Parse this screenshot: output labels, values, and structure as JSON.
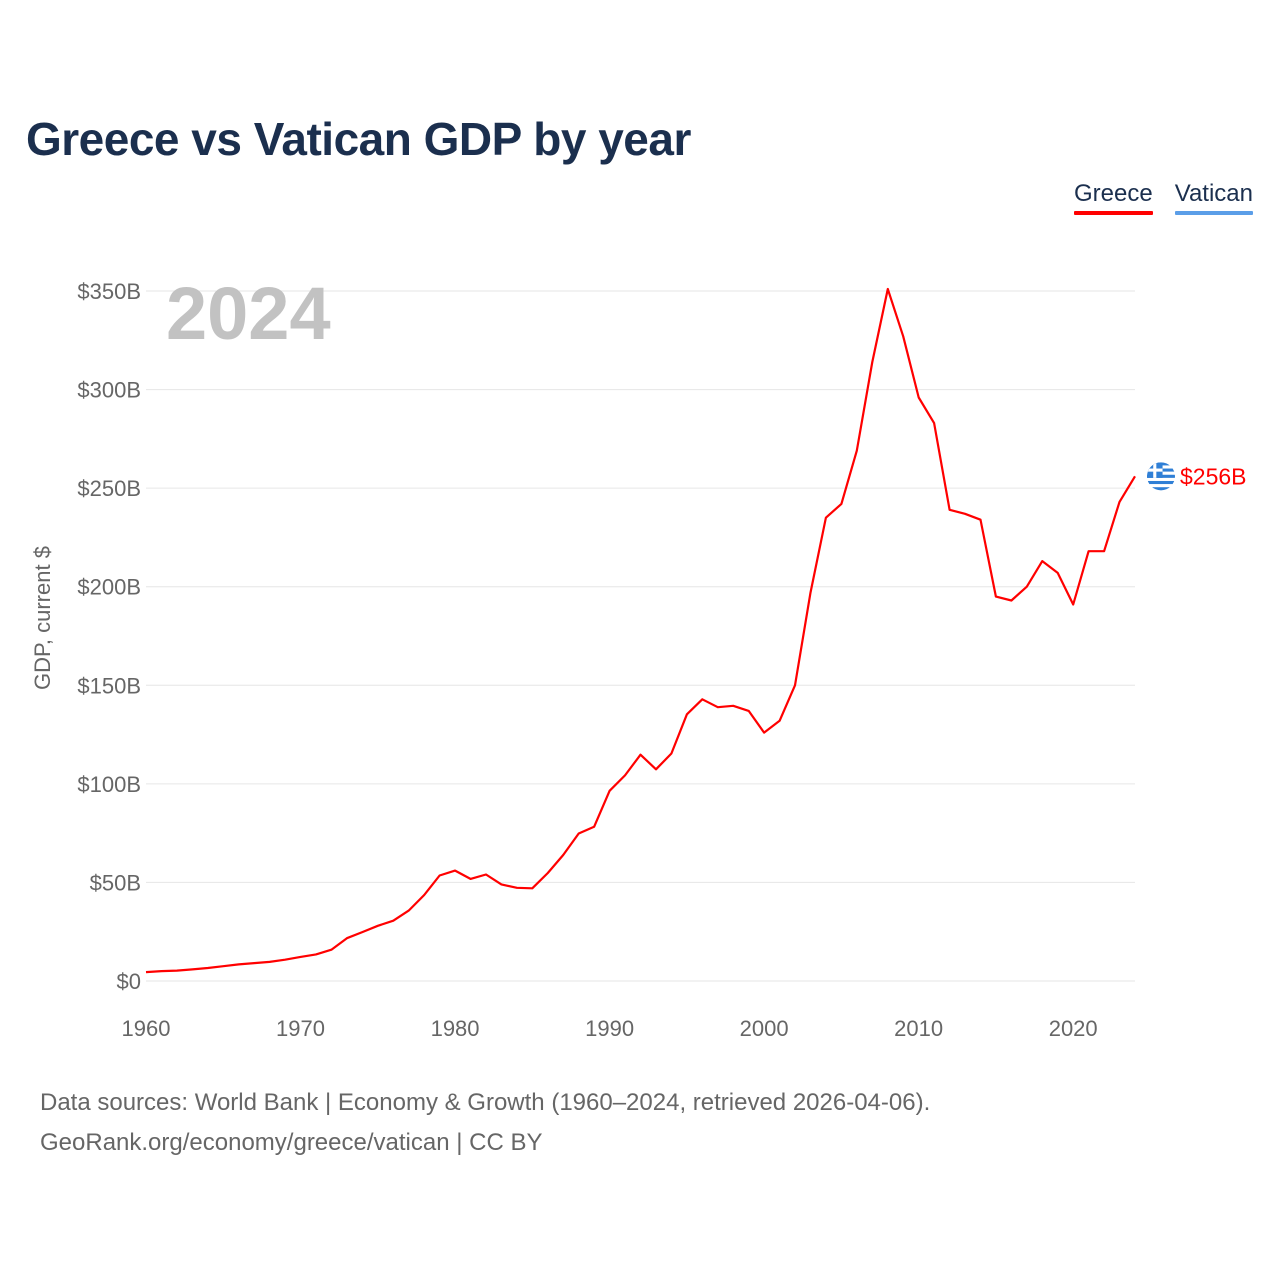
{
  "title": "Greece vs Vatican GDP by year",
  "legend": [
    {
      "label": "Greece",
      "color": "#ff0000"
    },
    {
      "label": "Vatican",
      "color": "#5b9ee8"
    }
  ],
  "year_watermark": "2024",
  "end_label": "$256B",
  "footer": {
    "line1": "Data sources: World Bank | Economy & Growth (1960–2024, retrieved 2026-04-06).",
    "line2": "GeoRank.org/economy/greece/vatican | CC BY"
  },
  "chart_data": {
    "type": "line",
    "title": "Greece vs Vatican GDP by year",
    "xlabel": "",
    "ylabel": "GDP, current $",
    "xlim": [
      1960,
      2024
    ],
    "ylim": [
      0,
      350
    ],
    "grid": true,
    "legend_position": "top-right",
    "x_ticks": [
      1960,
      1970,
      1980,
      1990,
      2000,
      2010,
      2020
    ],
    "x_tick_labels": [
      "1960",
      "1970",
      "1980",
      "1990",
      "2000",
      "2010",
      "2020"
    ],
    "y_ticks": [
      0,
      50,
      100,
      150,
      200,
      250,
      300,
      350
    ],
    "y_tick_labels": [
      "$0",
      "$50B",
      "$100B",
      "$150B",
      "$200B",
      "$250B",
      "$300B",
      "$350B"
    ],
    "units": "billions of current US$",
    "series": [
      {
        "name": "Greece",
        "color": "#ff0000",
        "x": [
          1960,
          1961,
          1962,
          1963,
          1964,
          1965,
          1966,
          1967,
          1968,
          1969,
          1970,
          1971,
          1972,
          1973,
          1974,
          1975,
          1976,
          1977,
          1978,
          1979,
          1980,
          1981,
          1982,
          1983,
          1984,
          1985,
          1986,
          1987,
          1988,
          1989,
          1990,
          1991,
          1992,
          1993,
          1994,
          1995,
          1996,
          1997,
          1998,
          1999,
          2000,
          2001,
          2002,
          2003,
          2004,
          2005,
          2006,
          2007,
          2008,
          2009,
          2010,
          2011,
          2012,
          2013,
          2014,
          2015,
          2016,
          2017,
          2018,
          2019,
          2020,
          2021,
          2022,
          2023,
          2024
        ],
        "values": [
          4.5,
          5.0,
          5.3,
          5.9,
          6.6,
          7.5,
          8.4,
          9.1,
          9.7,
          10.8,
          12.2,
          13.5,
          15.9,
          21.7,
          24.8,
          28.0,
          30.6,
          35.7,
          43.6,
          53.5,
          56.0,
          51.8,
          54.0,
          49.0,
          47.3,
          47.0,
          54.8,
          63.9,
          74.8,
          78.2,
          96.5,
          104.3,
          114.8,
          107.4,
          115.4,
          135.3,
          142.9,
          138.9,
          139.6,
          137.0,
          126.0,
          132.0,
          150.0,
          197.0,
          235.0,
          242.0,
          269.0,
          314.0,
          351.0,
          327.0,
          296.0,
          283.0,
          239.0,
          237.0,
          234.0,
          195.0,
          193.0,
          200.0,
          213.0,
          207.0,
          191.0,
          218.0,
          218.0,
          243.0,
          256.0
        ]
      },
      {
        "name": "Vatican",
        "color": "#5b9ee8",
        "x": [],
        "values": []
      }
    ]
  }
}
